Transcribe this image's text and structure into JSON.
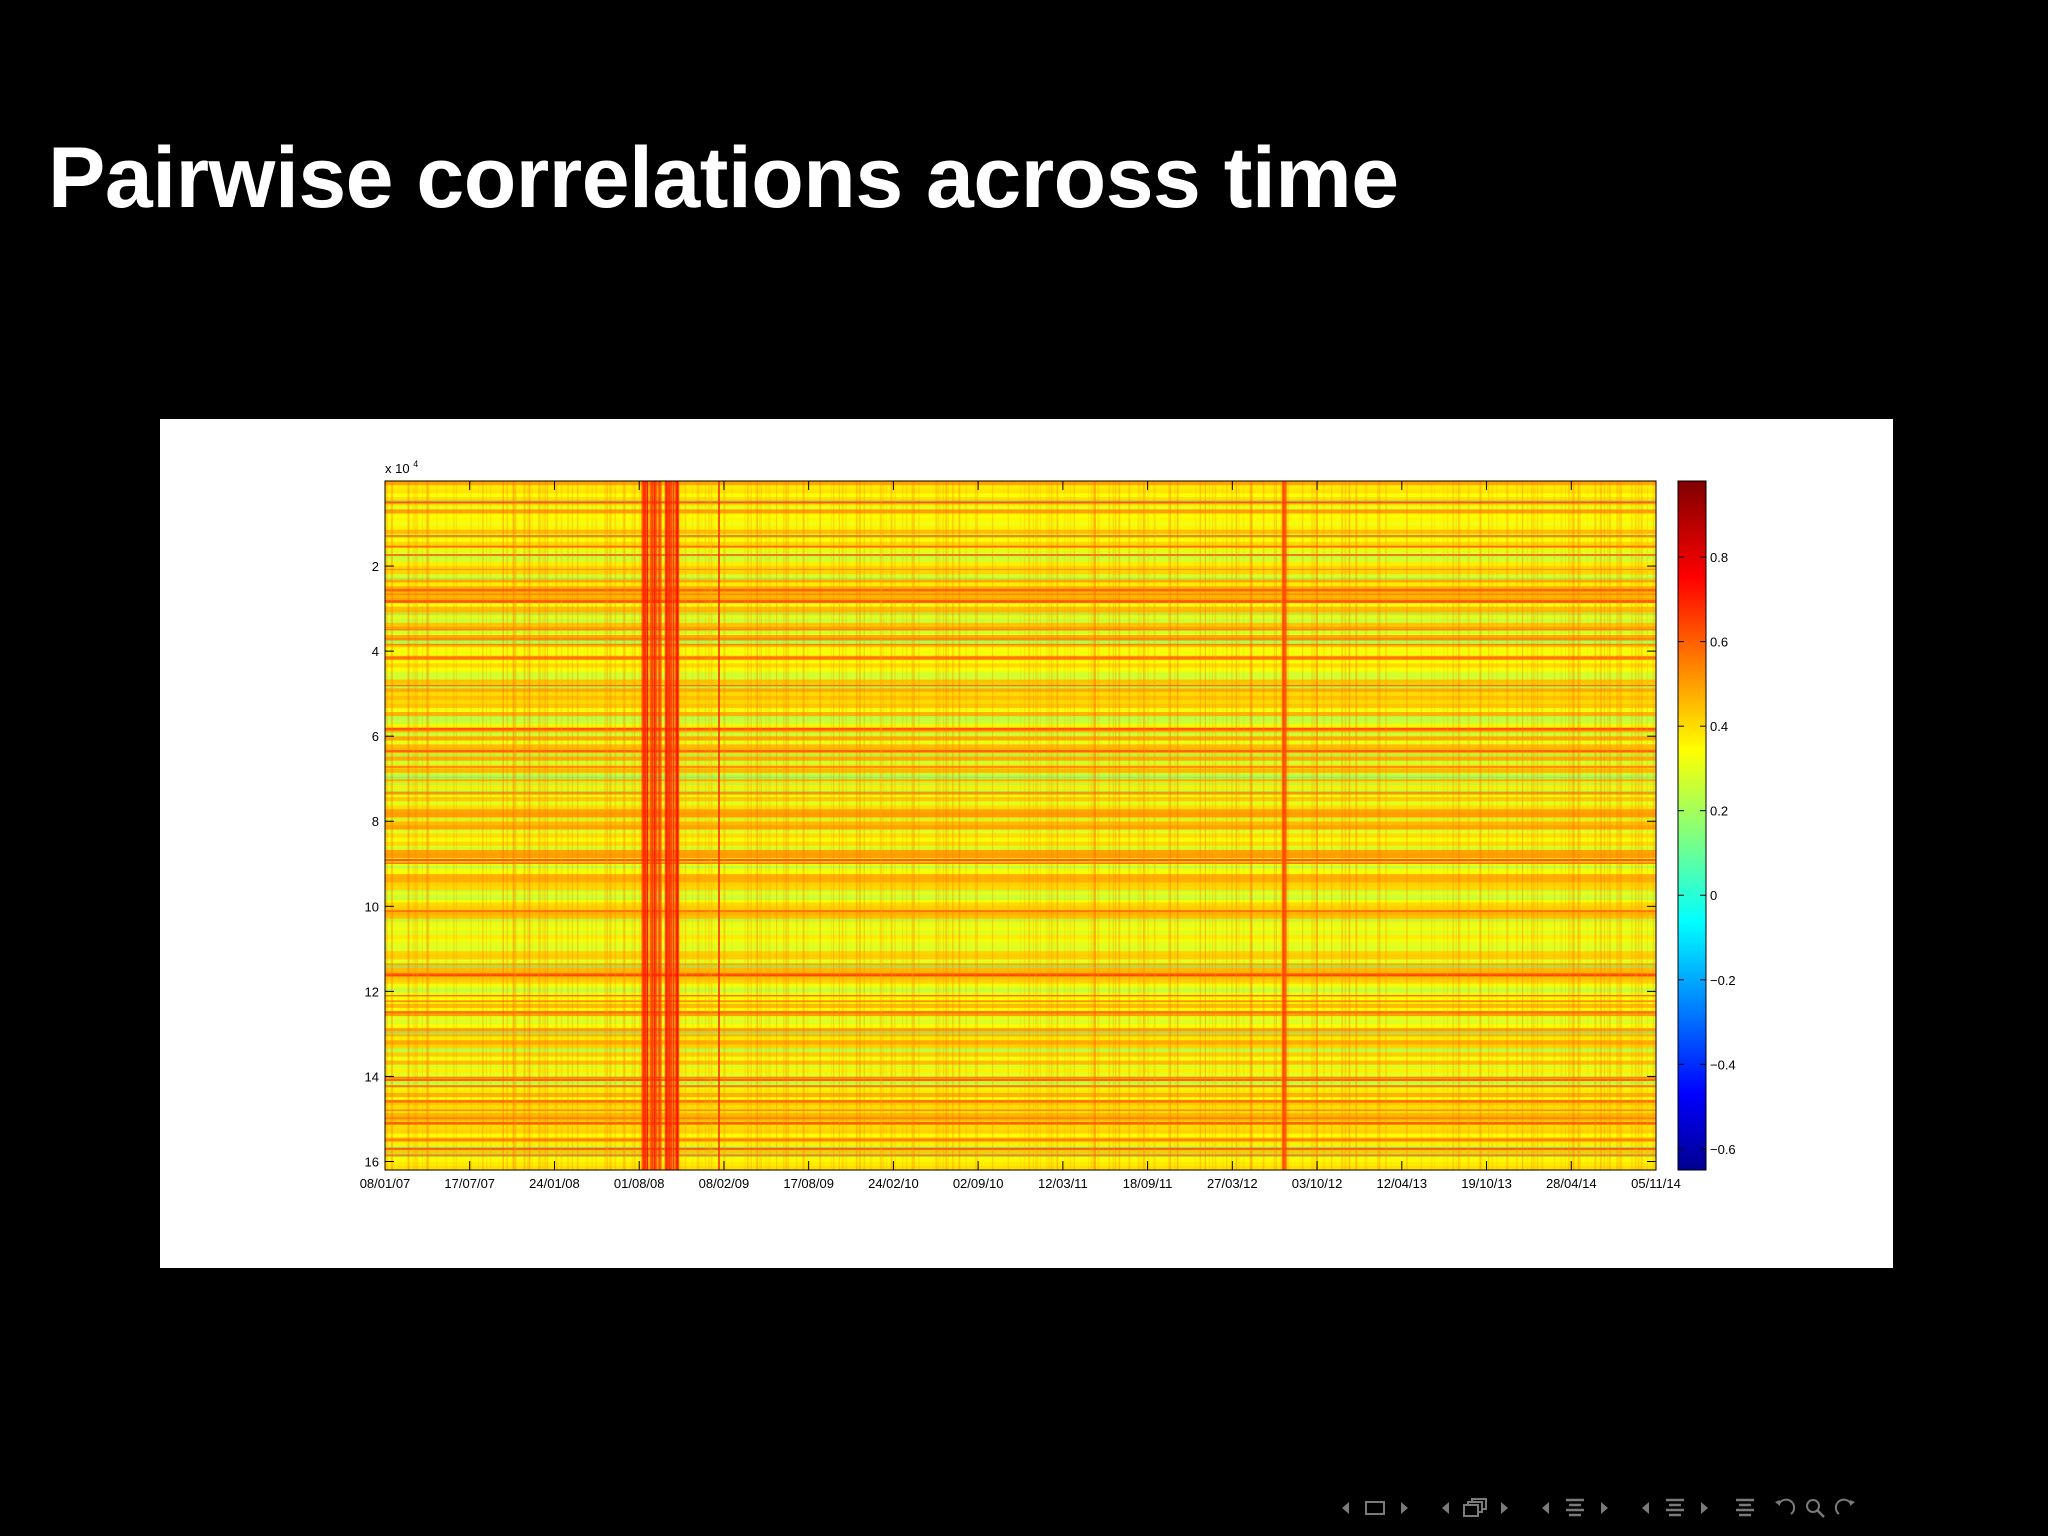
{
  "slide": {
    "title": "Pairwise correlations across time"
  },
  "chart_data": {
    "type": "heatmap",
    "title": "",
    "xlabel": "",
    "ylabel": "",
    "y_exponent_label": "x 10",
    "y_exponent_power": "4",
    "x_tick_labels": [
      "08/01/07",
      "17/07/07",
      "24/01/08",
      "01/08/08",
      "08/02/09",
      "17/08/09",
      "24/02/10",
      "02/09/10",
      "12/03/11",
      "18/09/11",
      "27/03/12",
      "03/10/12",
      "12/04/13",
      "19/10/13",
      "28/04/14",
      "05/11/14"
    ],
    "y_ticks": [
      2,
      4,
      6,
      8,
      10,
      12,
      14,
      16
    ],
    "y_tick_labels": [
      "2",
      "4",
      "6",
      "8",
      "10",
      "12",
      "14",
      "16"
    ],
    "ylim": [
      0,
      16.2
    ],
    "colorbar": {
      "colormap": "jet",
      "range": [
        -0.65,
        0.98
      ],
      "ticks": [
        0.8,
        0.6,
        0.4,
        0.2,
        0,
        -0.2,
        -0.4,
        -0.6
      ],
      "tick_labels": [
        "0.8",
        "0.6",
        "0.4",
        "0.2",
        "0",
        "−0.2",
        "−0.4",
        "−0.6"
      ]
    },
    "typical_value_range": [
      0.25,
      0.55
    ],
    "high_correlation_periods": [
      "01/08/08 – 08/02/09",
      "27/03/12 – 03/10/12"
    ],
    "grid": false
  },
  "nav": {
    "color": "#7a7a7a",
    "icons": [
      "nav-prev-arrow-icon",
      "frame-icon",
      "nav-next-arrow-icon",
      "nav-prev-arrow-icon",
      "subsection-icon",
      "nav-next-arrow-icon",
      "nav-prev-arrow-icon",
      "section-icon",
      "nav-next-arrow-icon",
      "nav-prev-arrow-icon",
      "document-icon",
      "nav-next-arrow-icon",
      "appendix-icon",
      "back-icon",
      "search-icon",
      "forward-icon"
    ]
  }
}
